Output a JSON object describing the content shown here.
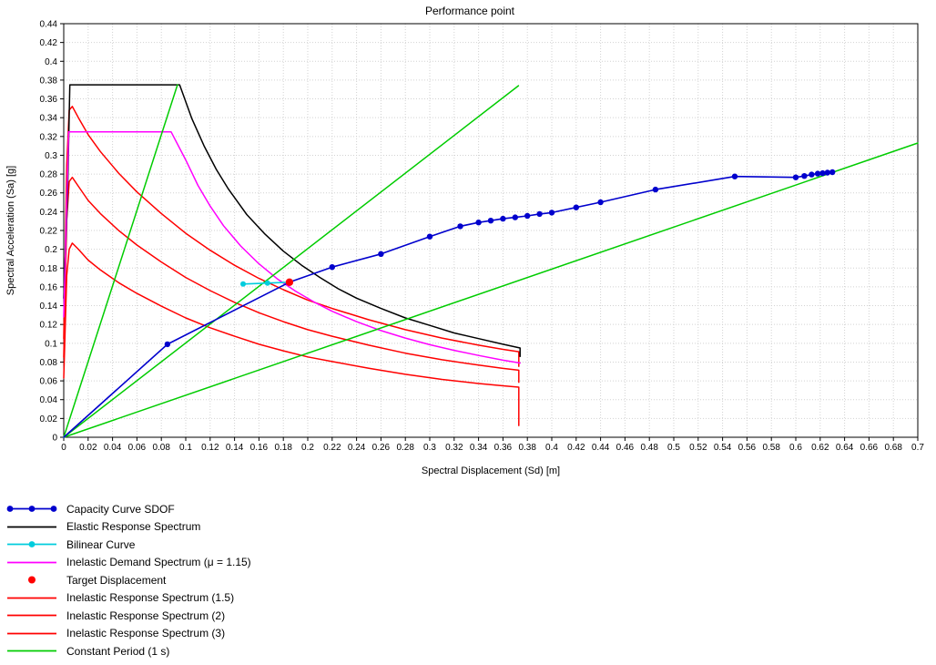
{
  "chart_data": {
    "type": "line",
    "title": "Performance point",
    "xlabel": "Spectral Displacement (Sd) [m]",
    "ylabel": "Spectral Acceleration (Sa) [g]",
    "xlim": [
      0,
      0.7
    ],
    "ylim": [
      0,
      0.44
    ],
    "grid": true,
    "legend_position": "below-left",
    "x_tick_labels": [
      "0",
      "0.02",
      "0.04",
      "0.06",
      "0.08",
      "0.1",
      "0.12",
      "0.14",
      "0.16",
      "0.18",
      "0.2",
      "0.22",
      "0.24",
      "0.26",
      "0.28",
      "0.3",
      "0.32",
      "0.34",
      "0.36",
      "0.38",
      "0.4",
      "0.42",
      "0.44",
      "0.46",
      "0.48",
      "0.5",
      "0.52",
      "0.54",
      "0.56",
      "0.58",
      "0.6",
      "0.62",
      "0.64",
      "0.66",
      "0.68",
      "0.7"
    ],
    "y_tick_labels": [
      "0",
      "0.02",
      "0.04",
      "0.06",
      "0.08",
      "0.1",
      "0.12",
      "0.14",
      "0.16",
      "0.18",
      "0.2",
      "0.22",
      "0.24",
      "0.26",
      "0.28",
      "0.3",
      "0.32",
      "0.34",
      "0.36",
      "0.38",
      "0.4",
      "0.42",
      "0.44"
    ],
    "series": [
      {
        "id": "inelastic-response-3",
        "name": "Inelastic Response Spectrum (3)",
        "color": "#ff0000",
        "width": 1.5,
        "lines": [
          [
            [
              0,
              0.063
            ],
            [
              0.0025,
              0.172
            ],
            [
              0.0045,
              0.2
            ],
            [
              0.007,
              0.2065
            ],
            [
              0.012,
              0.2
            ],
            [
              0.02,
              0.1885
            ],
            [
              0.03,
              0.178
            ],
            [
              0.045,
              0.1645
            ],
            [
              0.06,
              0.153
            ],
            [
              0.08,
              0.1395
            ],
            [
              0.1,
              0.127
            ],
            [
              0.12,
              0.1165
            ],
            [
              0.14,
              0.1075
            ],
            [
              0.16,
              0.099
            ],
            [
              0.18,
              0.092
            ],
            [
              0.2,
              0.0855
            ],
            [
              0.22,
              0.0805
            ],
            [
              0.25,
              0.0735
            ],
            [
              0.28,
              0.067
            ],
            [
              0.31,
              0.0615
            ],
            [
              0.34,
              0.0572
            ],
            [
              0.36,
              0.0548
            ],
            [
              0.373,
              0.0533
            ],
            [
              0.373,
              0.0125
            ]
          ]
        ]
      },
      {
        "id": "inelastic-response-2",
        "name": "Inelastic Response Spectrum (2)",
        "color": "#ff0000",
        "width": 1.5,
        "lines": [
          [
            [
              0,
              0.085
            ],
            [
              0.0025,
              0.232
            ],
            [
              0.0045,
              0.272
            ],
            [
              0.007,
              0.2765
            ],
            [
              0.012,
              0.267
            ],
            [
              0.02,
              0.252
            ],
            [
              0.03,
              0.238
            ],
            [
              0.045,
              0.22
            ],
            [
              0.06,
              0.2045
            ],
            [
              0.08,
              0.1865
            ],
            [
              0.1,
              0.17
            ],
            [
              0.12,
              0.156
            ],
            [
              0.14,
              0.1435
            ],
            [
              0.16,
              0.1325
            ],
            [
              0.18,
              0.123
            ],
            [
              0.2,
              0.1145
            ],
            [
              0.22,
              0.1075
            ],
            [
              0.25,
              0.098
            ],
            [
              0.28,
              0.0895
            ],
            [
              0.31,
              0.0825
            ],
            [
              0.34,
              0.0768
            ],
            [
              0.36,
              0.0733
            ],
            [
              0.373,
              0.0713
            ],
            [
              0.373,
              0.0585
            ]
          ]
        ]
      },
      {
        "id": "inelastic-response-15",
        "name": "Inelastic Response Spectrum (1.5)",
        "color": "#ff0000",
        "width": 1.5,
        "lines": [
          [
            [
              0,
              0.105
            ],
            [
              0.0025,
              0.29
            ],
            [
              0.0045,
              0.348
            ],
            [
              0.007,
              0.352
            ],
            [
              0.012,
              0.34
            ],
            [
              0.02,
              0.322
            ],
            [
              0.03,
              0.304
            ],
            [
              0.045,
              0.281
            ],
            [
              0.06,
              0.261
            ],
            [
              0.08,
              0.238
            ],
            [
              0.1,
              0.217
            ],
            [
              0.12,
              0.199
            ],
            [
              0.14,
              0.183
            ],
            [
              0.16,
              0.169
            ],
            [
              0.18,
              0.157
            ],
            [
              0.2,
              0.146
            ],
            [
              0.22,
              0.137
            ],
            [
              0.25,
              0.125
            ],
            [
              0.28,
              0.1145
            ],
            [
              0.31,
              0.1055
            ],
            [
              0.34,
              0.098
            ],
            [
              0.36,
              0.0935
            ],
            [
              0.373,
              0.091
            ],
            [
              0.373,
              0.0755
            ]
          ]
        ]
      },
      {
        "id": "elastic-response",
        "name": "Elastic Response Spectrum",
        "color": "#000000",
        "width": 1.5,
        "lines": [
          [
            [
              0,
              0.148
            ],
            [
              0.003,
              0.25
            ],
            [
              0.005,
              0.375
            ],
            [
              0.095,
              0.375
            ],
            [
              0.105,
              0.339
            ],
            [
              0.115,
              0.31
            ],
            [
              0.125,
              0.285
            ],
            [
              0.135,
              0.264
            ],
            [
              0.15,
              0.237
            ],
            [
              0.165,
              0.216
            ],
            [
              0.18,
              0.198
            ],
            [
              0.195,
              0.183
            ],
            [
              0.21,
              0.17
            ],
            [
              0.225,
              0.158
            ],
            [
              0.24,
              0.148
            ],
            [
              0.26,
              0.137
            ],
            [
              0.28,
              0.127
            ],
            [
              0.3,
              0.119
            ],
            [
              0.32,
              0.111
            ],
            [
              0.34,
              0.105
            ],
            [
              0.36,
              0.099
            ],
            [
              0.374,
              0.095
            ],
            [
              0.374,
              0.086
            ]
          ]
        ]
      },
      {
        "id": "inelastic-demand",
        "name": "Inelastic Demand Spectrum (μ = 1.15)",
        "color": "#ff00ff",
        "width": 1.5,
        "lines": [
          [
            [
              0,
              0.128
            ],
            [
              0.004,
              0.325
            ],
            [
              0.088,
              0.325
            ],
            [
              0.1,
              0.295
            ],
            [
              0.11,
              0.268
            ],
            [
              0.12,
              0.246
            ],
            [
              0.131,
              0.225
            ],
            [
              0.145,
              0.2035
            ],
            [
              0.16,
              0.1845
            ],
            [
              0.175,
              0.1685
            ],
            [
              0.19,
              0.1555
            ],
            [
              0.205,
              0.144
            ],
            [
              0.22,
              0.134
            ],
            [
              0.24,
              0.123
            ],
            [
              0.26,
              0.1135
            ],
            [
              0.28,
              0.1055
            ],
            [
              0.3,
              0.0985
            ],
            [
              0.32,
              0.0925
            ],
            [
              0.34,
              0.087
            ],
            [
              0.36,
              0.082
            ],
            [
              0.374,
              0.079
            ]
          ]
        ]
      },
      {
        "id": "constant-period",
        "name": "Constant Period (1 s)",
        "color": "#00cc00",
        "width": 1.5,
        "lines": [
          [
            [
              0,
              0
            ],
            [
              0.0932,
              0.375
            ]
          ],
          [
            [
              0,
              0
            ],
            [
              0.3727,
              0.374
            ]
          ],
          [
            [
              0,
              0
            ],
            [
              0.7,
              0.313
            ]
          ]
        ]
      },
      {
        "id": "capacity-curve",
        "name": "Capacity Curve SDOF",
        "color": "#0000cd",
        "width": 1.6,
        "marker_size": 3.2,
        "lines": [
          [
            [
              0,
              0
            ],
            [
              0.085,
              0.099
            ],
            [
              0.185,
              0.165
            ],
            [
              0.22,
              0.181
            ],
            [
              0.26,
              0.195
            ],
            [
              0.3,
              0.2135
            ],
            [
              0.325,
              0.2245
            ],
            [
              0.34,
              0.2285
            ],
            [
              0.35,
              0.2305
            ],
            [
              0.36,
              0.2325
            ],
            [
              0.37,
              0.234
            ],
            [
              0.38,
              0.2355
            ],
            [
              0.39,
              0.2375
            ],
            [
              0.4,
              0.239
            ],
            [
              0.42,
              0.2445
            ],
            [
              0.44,
              0.25
            ],
            [
              0.485,
              0.2635
            ],
            [
              0.55,
              0.2775
            ],
            [
              0.6,
              0.2765
            ],
            [
              0.607,
              0.278
            ],
            [
              0.613,
              0.2795
            ],
            [
              0.618,
              0.2805
            ],
            [
              0.622,
              0.281
            ],
            [
              0.626,
              0.2815
            ],
            [
              0.63,
              0.282
            ]
          ]
        ],
        "markers": [
          [
            0.085,
            0.099
          ],
          [
            0.22,
            0.181
          ],
          [
            0.26,
            0.195
          ],
          [
            0.3,
            0.2135
          ],
          [
            0.325,
            0.2245
          ],
          [
            0.34,
            0.2285
          ],
          [
            0.35,
            0.2305
          ],
          [
            0.36,
            0.2325
          ],
          [
            0.37,
            0.234
          ],
          [
            0.38,
            0.2355
          ],
          [
            0.39,
            0.2375
          ],
          [
            0.4,
            0.239
          ],
          [
            0.42,
            0.2445
          ],
          [
            0.44,
            0.25
          ],
          [
            0.485,
            0.2635
          ],
          [
            0.55,
            0.2775
          ],
          [
            0.6,
            0.2765
          ],
          [
            0.607,
            0.278
          ],
          [
            0.613,
            0.2795
          ],
          [
            0.618,
            0.2805
          ],
          [
            0.622,
            0.281
          ],
          [
            0.626,
            0.2815
          ],
          [
            0.63,
            0.282
          ]
        ]
      },
      {
        "id": "bilinear-curve",
        "name": "Bilinear Curve",
        "color": "#00ccdd",
        "width": 1.6,
        "marker_size": 3,
        "lines": [
          [
            [
              0.147,
              0.163
            ],
            [
              0.185,
              0.165
            ]
          ]
        ],
        "markers": [
          [
            0.147,
            0.163
          ],
          [
            0.167,
            0.164
          ]
        ]
      },
      {
        "id": "target-displacement",
        "name": "Target Displacement",
        "color": "#ff0000",
        "width": 0,
        "marker_size": 4.2,
        "lines": [],
        "markers": [
          [
            0.185,
            0.165
          ]
        ]
      }
    ]
  },
  "legend": {
    "items": [
      {
        "label": "Capacity Curve SDOF",
        "color": "#0000cd",
        "glyph": "line-dots3"
      },
      {
        "label": "Elastic Response Spectrum",
        "color": "#000000",
        "glyph": "line"
      },
      {
        "label": "Bilinear Curve",
        "color": "#00ccdd",
        "glyph": "line-dot"
      },
      {
        "label": "Inelastic Demand Spectrum (μ = 1.15)",
        "color": "#ff00ff",
        "glyph": "line"
      },
      {
        "label": "Target Displacement",
        "color": "#ff0000",
        "glyph": "dot"
      },
      {
        "label": "Inelastic Response Spectrum (1.5)",
        "color": "#ff0000",
        "glyph": "line"
      },
      {
        "label": "Inelastic Response Spectrum (2)",
        "color": "#ff0000",
        "glyph": "line"
      },
      {
        "label": "Inelastic Response Spectrum (3)",
        "color": "#ff0000",
        "glyph": "line"
      },
      {
        "label": "Constant Period (1 s)",
        "color": "#00cc00",
        "glyph": "line"
      }
    ]
  }
}
